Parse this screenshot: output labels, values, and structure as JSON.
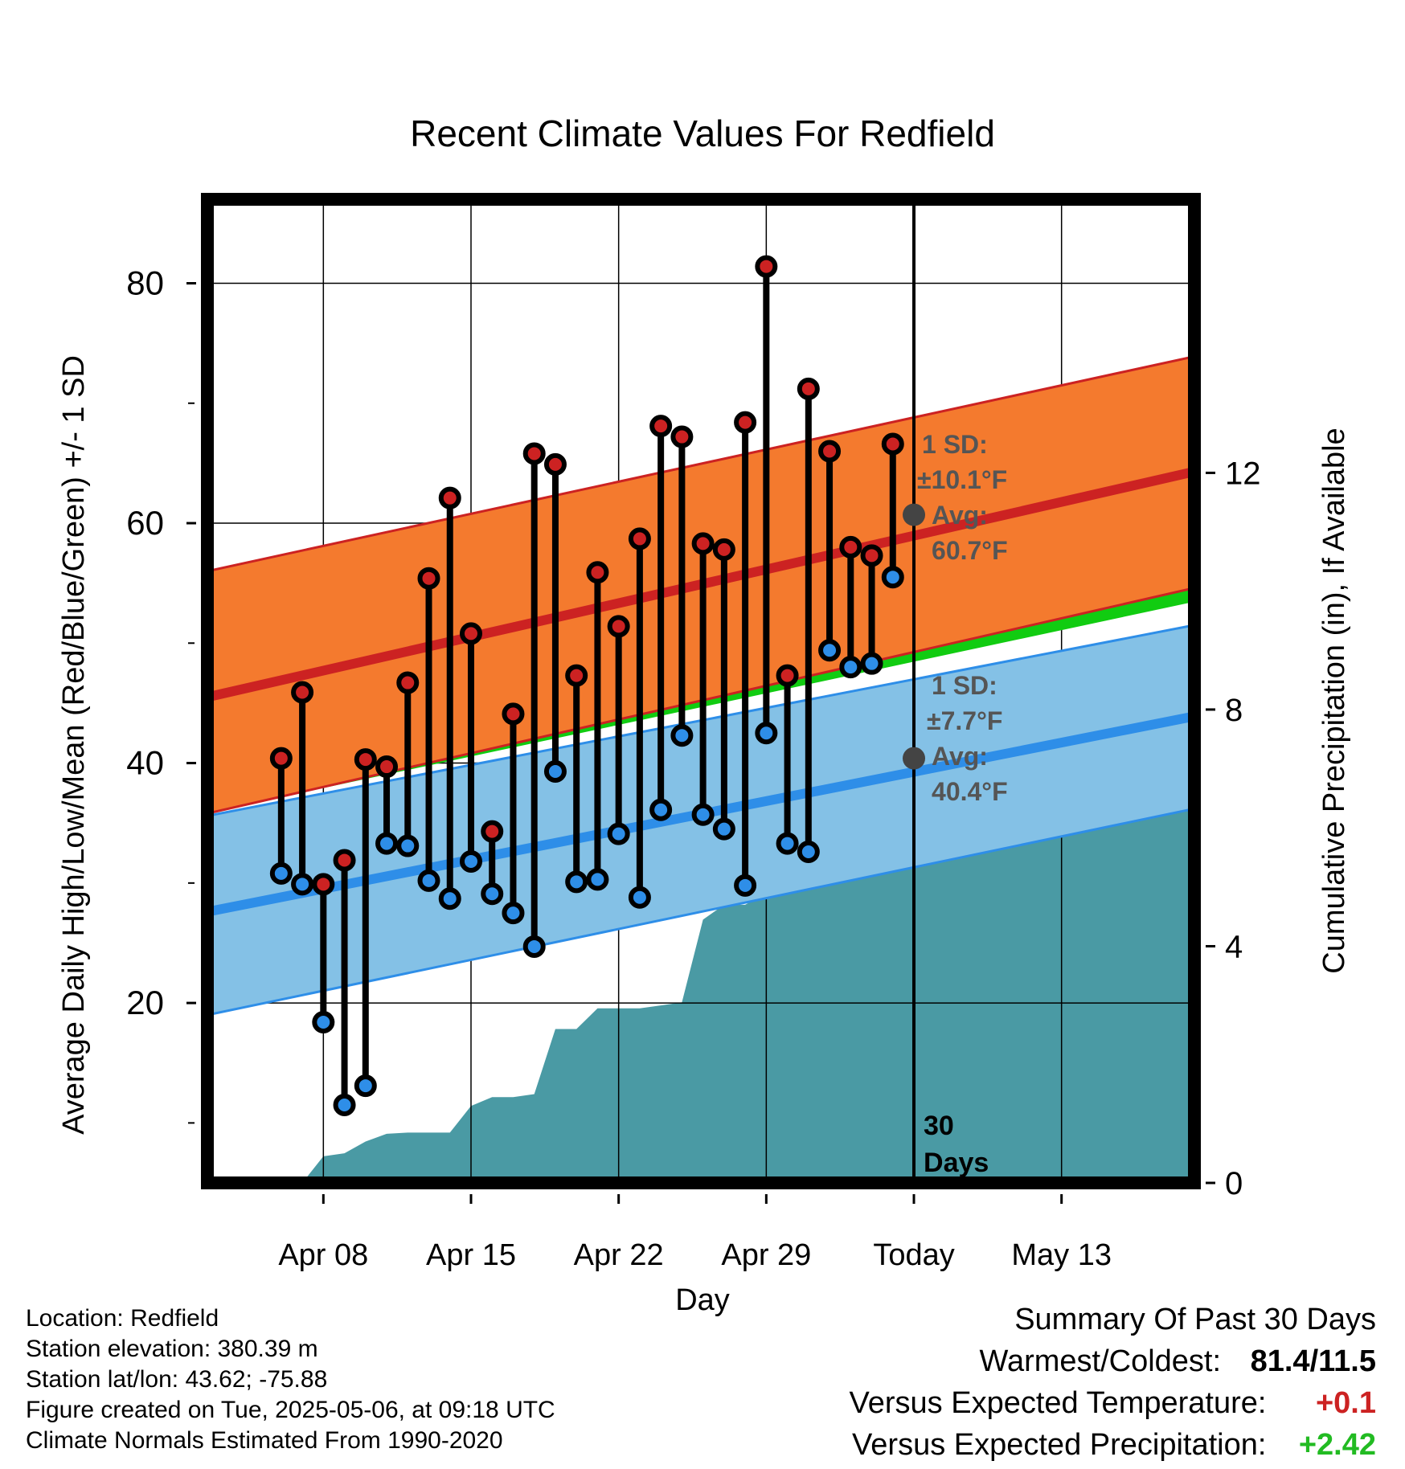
{
  "chart_data": {
    "type": "line",
    "title": "Recent Climate Values For Redfield",
    "xlabel": "Day",
    "ylabel": "Average Daily High/Low/Mean (Red/Blue/Green) +/- 1 SD",
    "y2label": "Cumulative Precipitation (in), If Available",
    "x_range_days": [
      -33.5,
      13.3
    ],
    "ylim": [
      5,
      87
    ],
    "y2lim": [
      0,
      16
    ],
    "grid": true,
    "x_ticks": [
      {
        "day": -28,
        "label": "Apr 08"
      },
      {
        "day": -21,
        "label": "Apr 15"
      },
      {
        "day": -14,
        "label": "Apr 22"
      },
      {
        "day": -7,
        "label": "Apr 29"
      },
      {
        "day": 0,
        "label": "Today"
      },
      {
        "day": 7,
        "label": "May 13"
      }
    ],
    "y_ticks": [
      20,
      40,
      60,
      80
    ],
    "y2_ticks": [
      0,
      4,
      8,
      12
    ],
    "today_day": 0,
    "period_label_1": "30",
    "period_label_2": "Days",
    "normals": {
      "days": [
        -33.5,
        13.3
      ],
      "high_avg": [
        45.5,
        64.3
      ],
      "high_sd_upper": [
        56.0,
        73.9
      ],
      "high_sd_lower": [
        35.8,
        54.6
      ],
      "mean_avg": [
        36.4,
        54.0
      ],
      "low_avg": [
        27.6,
        43.9
      ],
      "low_sd_upper": [
        35.6,
        51.5
      ],
      "low_sd_lower": [
        19.0,
        36.2
      ]
    },
    "high_annotation": {
      "line1": "1 SD:",
      "line2": "±10.1°F",
      "line3": "Avg:",
      "line4": "60.7°F",
      "avg": 60.7
    },
    "low_annotation": {
      "line1": "1 SD:",
      "line2": "±7.7°F",
      "line3": "Avg:",
      "line4": "40.4°F",
      "avg": 40.4
    },
    "series": [
      {
        "name": "High",
        "color": "#cc2222"
      },
      {
        "name": "Low",
        "color": "#2e8ee8"
      }
    ],
    "daily": [
      {
        "day": -30,
        "high": 40.4,
        "low": 30.8
      },
      {
        "day": -29,
        "high": 45.9,
        "low": 29.9
      },
      {
        "day": -28,
        "high": 29.9,
        "low": 18.4
      },
      {
        "day": -27,
        "high": 31.9,
        "low": 11.5
      },
      {
        "day": -26,
        "high": 40.3,
        "low": 13.1
      },
      {
        "day": -25,
        "high": 39.7,
        "low": 33.3
      },
      {
        "day": -24,
        "high": 46.7,
        "low": 33.1
      },
      {
        "day": -23,
        "high": 55.4,
        "low": 30.2
      },
      {
        "day": -22,
        "high": 62.1,
        "low": 28.7
      },
      {
        "day": -21,
        "high": 50.8,
        "low": 31.8
      },
      {
        "day": -20,
        "high": 34.3,
        "low": 29.1
      },
      {
        "day": -19,
        "high": 44.1,
        "low": 27.5
      },
      {
        "day": -18,
        "high": 65.8,
        "low": 24.7
      },
      {
        "day": -17,
        "high": 64.9,
        "low": 39.3
      },
      {
        "day": -16,
        "high": 47.3,
        "low": 30.1
      },
      {
        "day": -15,
        "high": 55.9,
        "low": 30.3
      },
      {
        "day": -14,
        "high": 51.4,
        "low": 34.1
      },
      {
        "day": -13,
        "high": 58.7,
        "low": 28.8
      },
      {
        "day": -12,
        "high": 68.1,
        "low": 36.1
      },
      {
        "day": -11,
        "high": 67.2,
        "low": 42.3
      },
      {
        "day": -10,
        "high": 58.3,
        "low": 35.7
      },
      {
        "day": -9,
        "high": 57.8,
        "low": 34.5
      },
      {
        "day": -8,
        "high": 68.4,
        "low": 29.8
      },
      {
        "day": -7,
        "high": 81.4,
        "low": 42.5
      },
      {
        "day": -6,
        "high": 47.3,
        "low": 33.3
      },
      {
        "day": -5,
        "high": 71.2,
        "low": 32.6
      },
      {
        "day": -4,
        "high": 66.0,
        "low": 49.4
      },
      {
        "day": -3,
        "high": 58.0,
        "low": 48.0
      },
      {
        "day": -2,
        "high": 57.3,
        "low": 48.3
      },
      {
        "day": -1,
        "high": 66.6,
        "low": 55.5
      }
    ],
    "precip_cumulative": {
      "days": [
        -31,
        -30,
        -29,
        -28,
        -27,
        -26,
        -25,
        -24,
        -23,
        -22,
        -21,
        -20,
        -19,
        -18,
        -17,
        -16,
        -15,
        -14,
        -13,
        -12,
        -11,
        -10,
        -9,
        -8,
        -7,
        -6,
        -5,
        -4,
        -3,
        -2,
        -1,
        0,
        13.3
      ],
      "values": [
        0,
        0,
        0,
        0.45,
        0.5,
        0.7,
        0.83,
        0.85,
        0.85,
        0.85,
        1.3,
        1.45,
        1.45,
        1.5,
        2.6,
        2.6,
        2.95,
        2.95,
        2.95,
        3.0,
        3.05,
        4.45,
        4.7,
        4.7,
        4.9,
        4.9,
        5.05,
        5.6,
        6.25,
        6.55,
        6.9,
        6.9,
        6.9
      ]
    }
  },
  "meta": {
    "location": "Location: Redfield",
    "elevation": "Station elevation: 380.39 m",
    "latlon": "Station lat/lon: 43.62; -75.88",
    "created": "Figure created on Tue, 2025-05-06, at 09:18 UTC",
    "normals": "Climate Normals Estimated From 1990-2020"
  },
  "summary": {
    "title": "Summary Of Past 30 Days",
    "warmest_label": "Warmest/Coldest:",
    "warmest_value": "81.4/11.5",
    "temp_label": "Versus Expected Temperature:",
    "temp_value": "+0.1",
    "precip_label": "Versus Expected Precipitation:",
    "precip_value": "+2.42"
  },
  "colors": {
    "high_band": "#f47a2e",
    "high_line": "#cc2222",
    "mean_line": "#11cc11",
    "low_band": "#84c1e6",
    "low_line": "#2e8ee8",
    "precip": "#4a9aa4",
    "annotation": "#555555",
    "warm": "#cc2222",
    "wet": "#22bb22"
  }
}
